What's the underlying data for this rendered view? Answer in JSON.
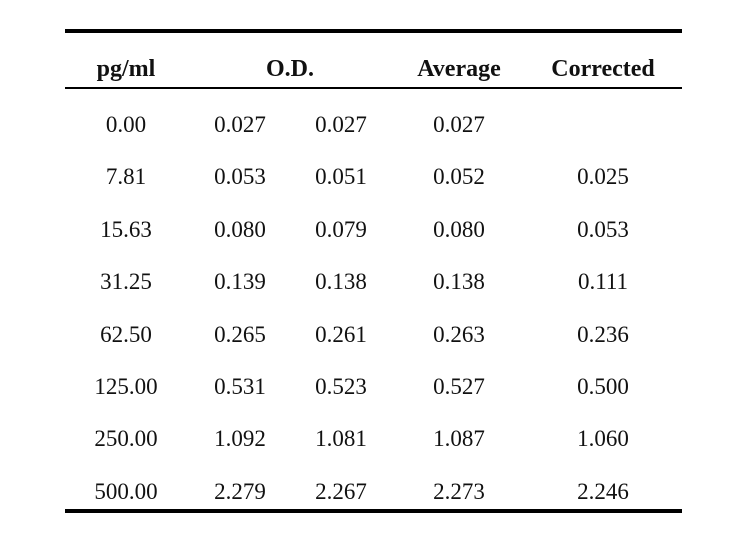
{
  "table": {
    "headers": {
      "concentration": "pg/ml",
      "od": "O.D.",
      "average": "Average",
      "corrected": "Corrected"
    },
    "rows": [
      {
        "pgml": "0.00",
        "od1": "0.027",
        "od2": "0.027",
        "average": "0.027",
        "corrected": ""
      },
      {
        "pgml": "7.81",
        "od1": "0.053",
        "od2": "0.051",
        "average": "0.052",
        "corrected": "0.025"
      },
      {
        "pgml": "15.63",
        "od1": "0.080",
        "od2": "0.079",
        "average": "0.080",
        "corrected": "0.053"
      },
      {
        "pgml": "31.25",
        "od1": "0.139",
        "od2": "0.138",
        "average": "0.138",
        "corrected": "0.111"
      },
      {
        "pgml": "62.50",
        "od1": "0.265",
        "od2": "0.261",
        "average": "0.263",
        "corrected": "0.236"
      },
      {
        "pgml": "125.00",
        "od1": "0.531",
        "od2": "0.523",
        "average": "0.527",
        "corrected": "0.500"
      },
      {
        "pgml": "250.00",
        "od1": "1.092",
        "od2": "1.081",
        "average": "1.087",
        "corrected": "1.060"
      },
      {
        "pgml": "500.00",
        "od1": "2.279",
        "od2": "2.267",
        "average": "2.273",
        "corrected": "2.246"
      }
    ]
  }
}
